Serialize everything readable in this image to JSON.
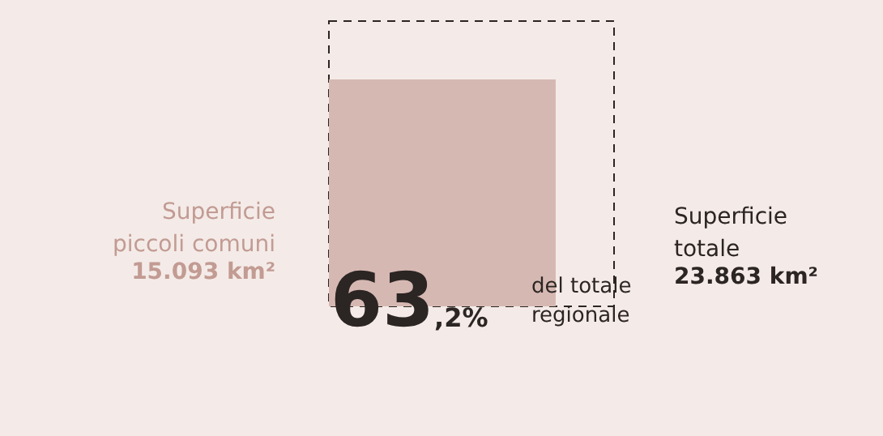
{
  "chart_data": {
    "type": "other",
    "categories": [
      "Superficie\npiccoli comuni",
      "Superficie\ntotale"
    ],
    "values": [
      15093,
      23863
    ],
    "value_labels": [
      "15.093 km²",
      "23.863 km²"
    ],
    "colors": [
      "#d6b8b2",
      "#2b2523"
    ],
    "annotations": [
      "63,2%",
      "del totale\nregionale"
    ]
  }
}
